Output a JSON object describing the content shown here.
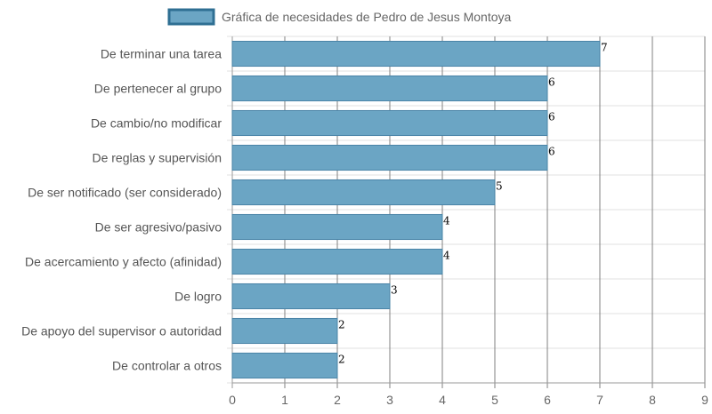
{
  "chart_data": {
    "type": "bar",
    "orientation": "horizontal",
    "categories": [
      "De terminar una tarea",
      "De pertenecer al grupo",
      "De cambio/no modificar",
      "De reglas y supervisión",
      "De ser notificado (ser considerado)",
      "De ser agresivo/pasivo",
      "De acercamiento y afecto (afinidad)",
      "De logro",
      "De apoyo del supervisor o autoridad",
      "De controlar a otros"
    ],
    "series": [
      {
        "name": "Gráfica de necesidades de Pedro de Jesus Montoya",
        "values": [
          7,
          6,
          6,
          6,
          5,
          4,
          4,
          3,
          2,
          2
        ]
      }
    ],
    "xlim": [
      0,
      9
    ],
    "x_ticks": [
      "0",
      "1",
      "2",
      "3",
      "4",
      "5",
      "6",
      "7",
      "8",
      "9"
    ],
    "grid": true,
    "legend_position": "top",
    "data_labels": true,
    "colors": {
      "bar_fill": "#6ba5c4",
      "bar_stroke": "#4a84a6",
      "legend_fill": "#6ba5c4",
      "legend_stroke": "#2f6f93",
      "grid": "#e2e2e2",
      "grid_vertical": "#808080"
    }
  }
}
